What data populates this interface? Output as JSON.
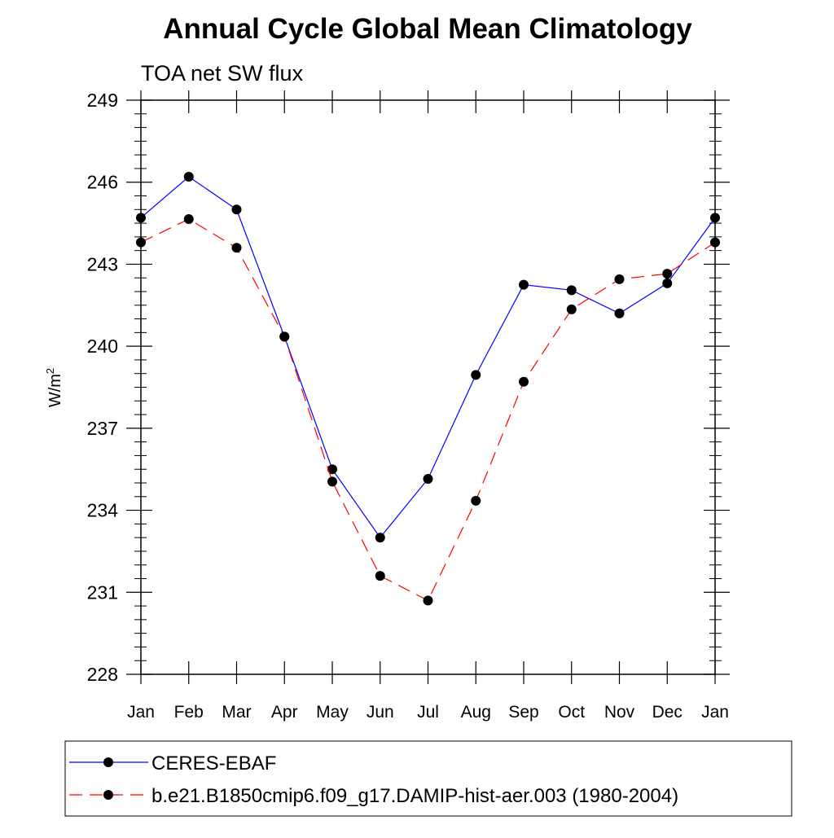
{
  "chart_data": {
    "type": "line",
    "title": "Annual Cycle Global Mean Climatology",
    "subtitle": "TOA net SW flux",
    "xlabel": "",
    "ylabel": "W/m",
    "ylabel_superscript": "2",
    "categories": [
      "Jan",
      "Feb",
      "Mar",
      "Apr",
      "May",
      "Jun",
      "Jul",
      "Aug",
      "Sep",
      "Oct",
      "Nov",
      "Dec",
      "Jan"
    ],
    "ylim": [
      228,
      249
    ],
    "yticks": [
      228,
      231,
      234,
      237,
      240,
      243,
      246,
      249
    ],
    "ytick_labels": [
      "228",
      "231",
      "234",
      "237",
      "240",
      "243",
      "246",
      "249"
    ],
    "grid": false,
    "legend_position": "bottom",
    "series": [
      {
        "name": "CERES-EBAF",
        "color": "#0000ff",
        "dash": "solid",
        "marker": "filled-circle",
        "values": [
          244.7,
          246.2,
          245.0,
          240.35,
          235.5,
          233.0,
          235.15,
          238.95,
          242.25,
          242.05,
          241.2,
          242.3,
          244.7
        ]
      },
      {
        "name": "b.e21.B1850cmip6.f09_g17.DAMIP-hist-aer.003 (1980-2004)",
        "color": "#ff0000",
        "dash": "dashed",
        "marker": "filled-circle",
        "values": [
          243.8,
          244.65,
          243.6,
          240.35,
          235.05,
          231.6,
          230.7,
          234.35,
          238.7,
          241.35,
          242.45,
          242.65,
          243.8
        ]
      }
    ]
  }
}
